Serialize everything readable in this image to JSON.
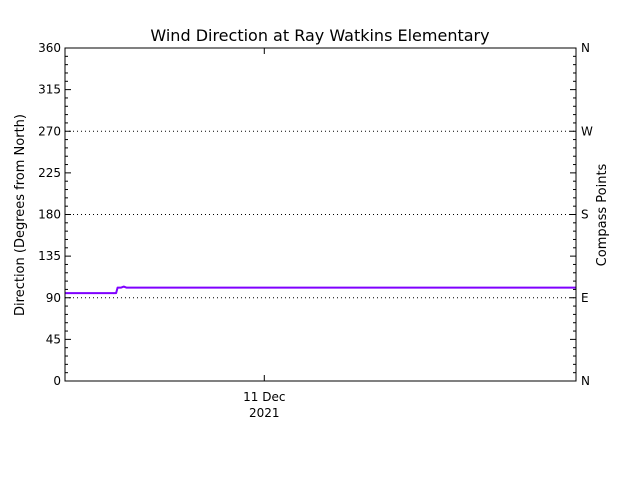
{
  "chart_data": {
    "type": "line",
    "title": "Wind Direction at Ray Watkins Elementary",
    "ylabel": "Direction (Degrees from North)",
    "ylabel_right": "Compass Points",
    "xlabel": "",
    "x_tick_labels": [
      {
        "line1": "11 Dec",
        "line2": "2021",
        "position_fraction": 0.39
      }
    ],
    "ylim": [
      0,
      360
    ],
    "y_ticks": [
      0,
      45,
      90,
      135,
      180,
      225,
      270,
      315,
      360
    ],
    "compass_ticks": [
      {
        "value": 0,
        "label": "N"
      },
      {
        "value": 90,
        "label": "E"
      },
      {
        "value": 180,
        "label": "S"
      },
      {
        "value": 270,
        "label": "W"
      },
      {
        "value": 360,
        "label": "N"
      }
    ],
    "grid_lines_at": [
      90,
      180,
      270
    ],
    "series": [
      {
        "color": "#7f00ff",
        "x_fraction": [
          0.0,
          0.1,
          0.103,
          0.11,
          0.115,
          0.12,
          1.0
        ],
        "values": [
          95,
          95,
          101,
          101,
          102,
          101,
          101
        ]
      }
    ]
  }
}
